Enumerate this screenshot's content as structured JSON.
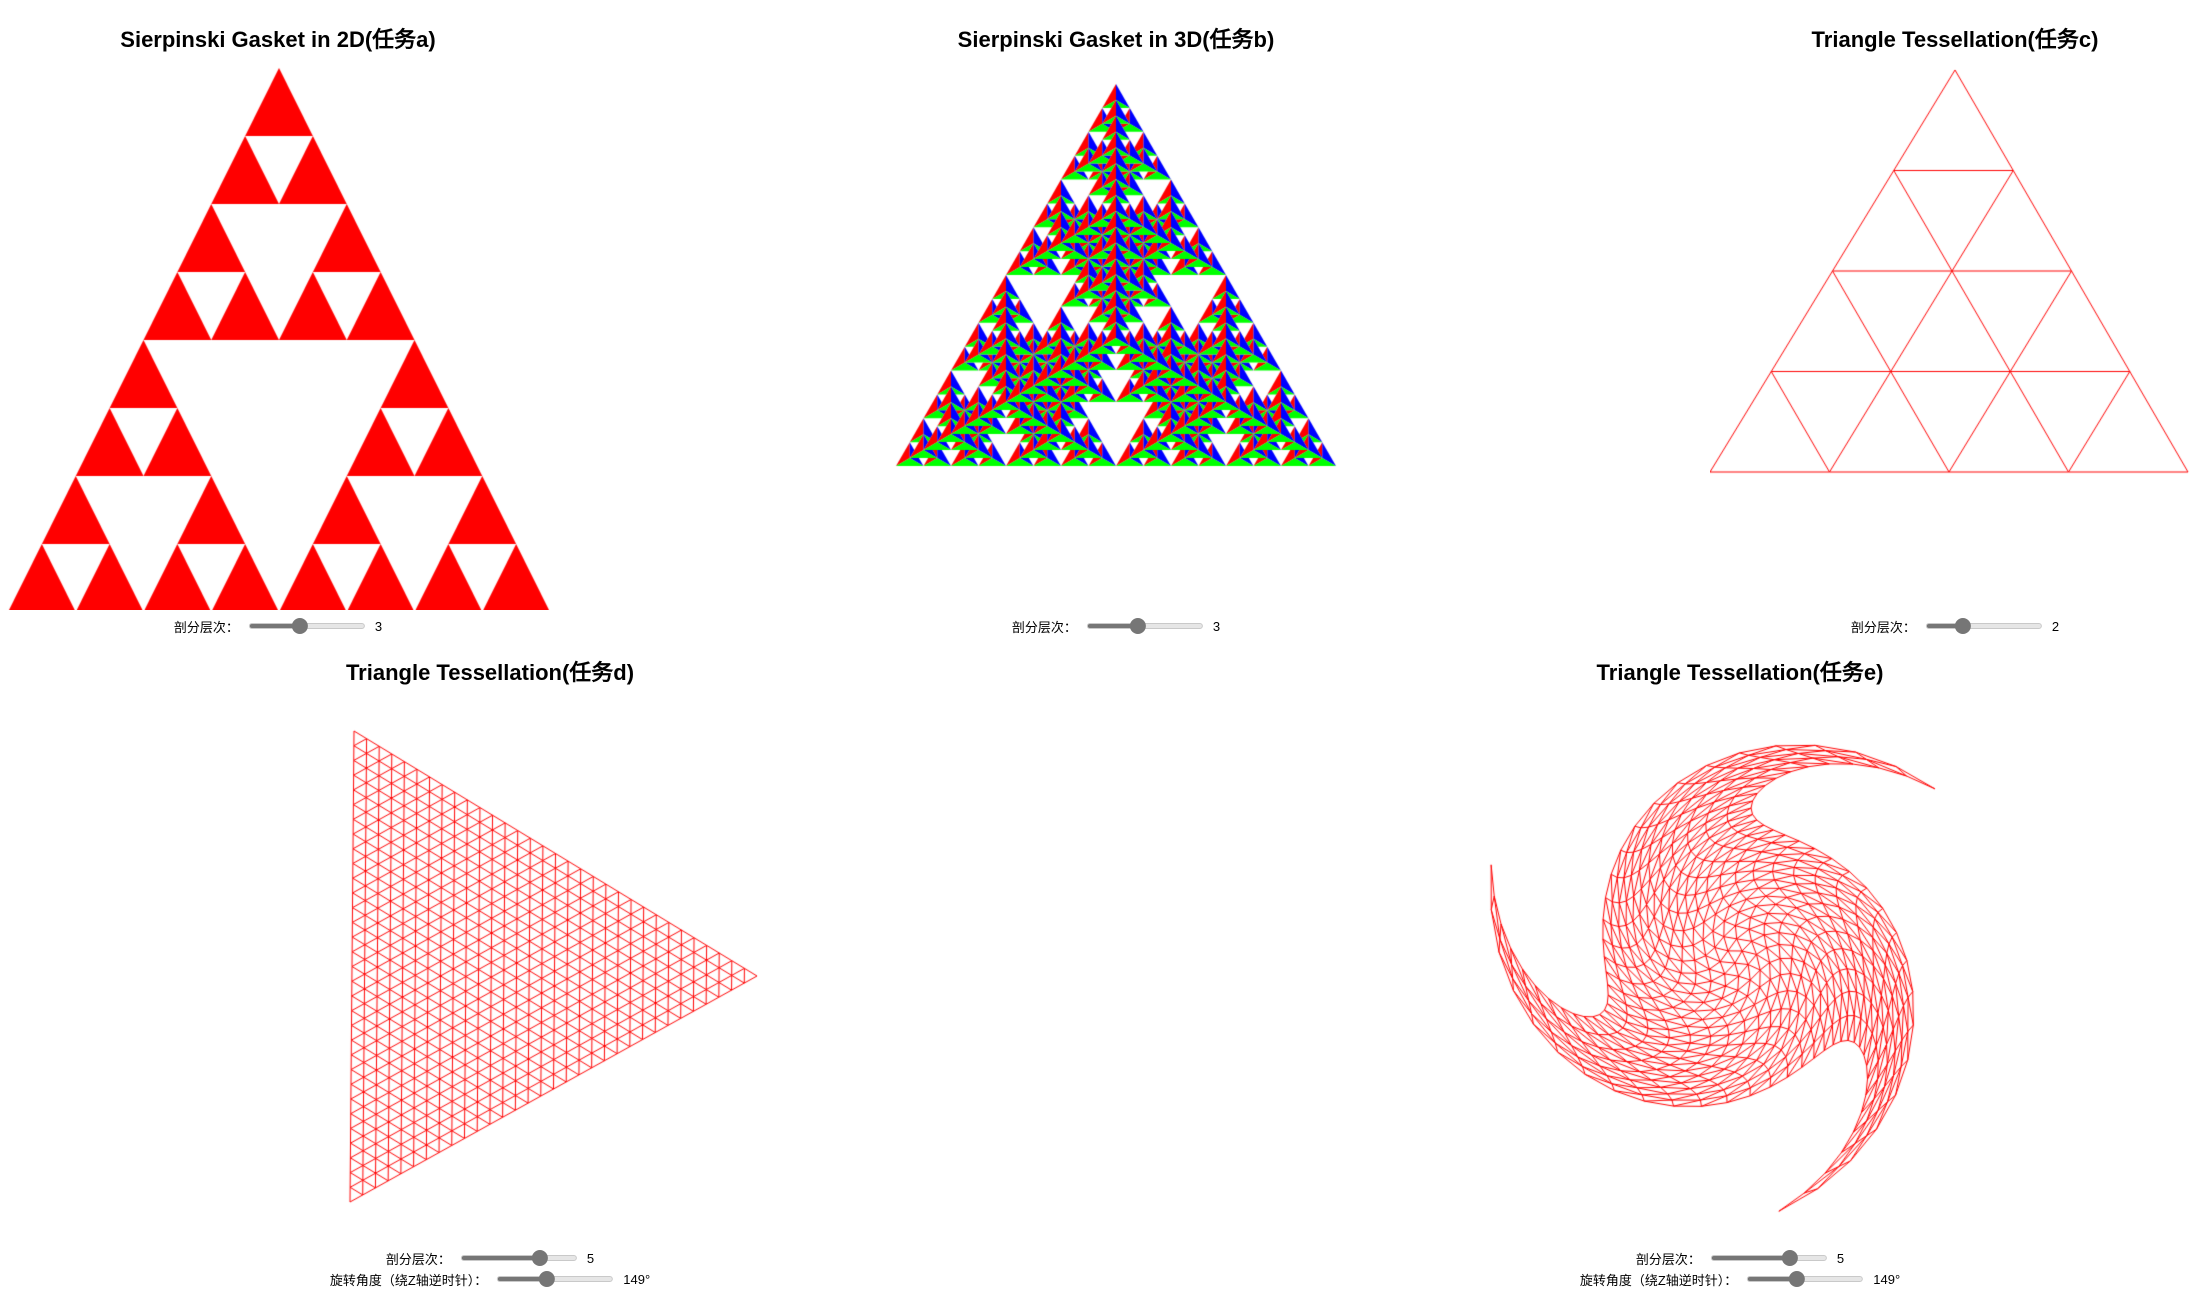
{
  "panel_a": {
    "title": "Sierpinski Gasket in 2D(任务a)",
    "slider": {
      "label": "剖分层次：",
      "value": 3,
      "min": 0,
      "max": 7
    }
  },
  "panel_b": {
    "title": "Sierpinski Gasket in 3D(任务b)",
    "slider": {
      "label": "剖分层次：",
      "value": 3,
      "min": 0,
      "max": 7
    }
  },
  "panel_c": {
    "title": "Triangle Tessellation(任务c)",
    "slider": {
      "label": "剖分层次：",
      "value": 2,
      "min": 0,
      "max": 7
    }
  },
  "panel_d": {
    "title": "Triangle Tessellation(任务d)",
    "level_slider": {
      "label": "剖分层次：",
      "value": 5,
      "min": 0,
      "max": 7
    },
    "angle_slider": {
      "label": "旋转角度（绕Z轴逆时针）：",
      "value": "149°",
      "fraction": 0.414
    }
  },
  "panel_e": {
    "title": "Triangle Tessellation(任务e)",
    "level_slider": {
      "label": "剖分层次：",
      "value": 5,
      "min": 0,
      "max": 7
    },
    "angle_slider": {
      "label": "旋转角度（绕Z轴逆时针）：",
      "value": "149°",
      "fraction": 0.414
    }
  },
  "colors": {
    "stroke": "#ff0000",
    "face_a": "#ff0000",
    "face_b": [
      "#ff0000",
      "#00ff00",
      "#0000ff"
    ]
  }
}
